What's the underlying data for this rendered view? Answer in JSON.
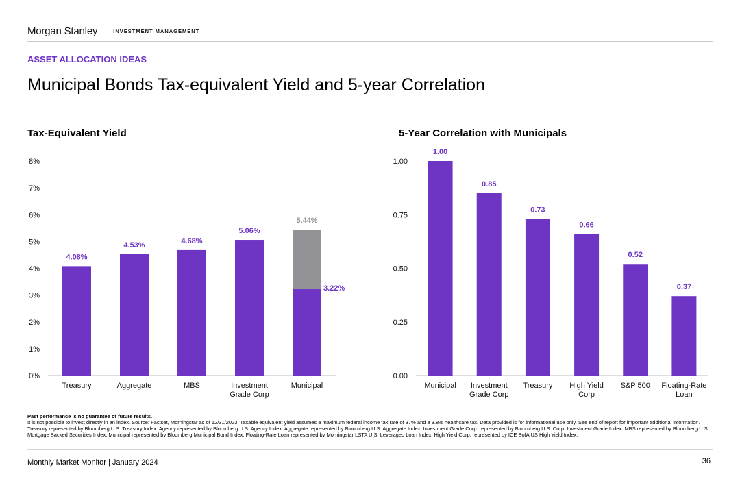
{
  "header": {
    "logo_text": "Morgan Stanley",
    "division": "INVESTMENT MANAGEMENT"
  },
  "kicker": "ASSET ALLOCATION IDEAS",
  "page_title": "Municipal Bonds Tax-equivalent Yield and 5-year Correlation",
  "colors": {
    "accent": "#6e35c5",
    "gray_bar": "#929297"
  },
  "chart_data": [
    {
      "type": "bar",
      "title": "Tax-Equivalent Yield",
      "xlabel": "",
      "ylabel": "",
      "categories": [
        "Treasury",
        "Aggregate",
        "MBS",
        "Investment Grade Corp",
        "Municipal"
      ],
      "category_lines": [
        [
          "Treasury"
        ],
        [
          "Aggregate"
        ],
        [
          "MBS"
        ],
        [
          "Investment",
          "Grade Corp"
        ],
        [
          "Municipal"
        ]
      ],
      "series": [
        {
          "values": [
            4.08,
            4.53,
            4.68,
            5.06,
            3.22
          ],
          "labels": [
            "4.08%",
            "4.53%",
            "4.68%",
            "5.06%",
            "3.22%"
          ],
          "color": "#6e35c5"
        }
      ],
      "stacked_top": {
        "category": "Municipal",
        "total": 5.44,
        "label": "5.44%",
        "color": "#929297"
      },
      "ylim": [
        0,
        8
      ],
      "yticks": [
        0,
        1,
        2,
        3,
        4,
        5,
        6,
        7,
        8
      ],
      "ytick_labels": [
        "0%",
        "1%",
        "2%",
        "3%",
        "4%",
        "5%",
        "6%",
        "7%",
        "8%"
      ],
      "grid": false,
      "legend": "none"
    },
    {
      "type": "bar",
      "title": "5-Year Correlation with Municipals",
      "xlabel": "",
      "ylabel": "",
      "categories": [
        "Municipal",
        "Investment Grade Corp",
        "Treasury",
        "High Yield Corp",
        "S&P 500",
        "Floating-Rate Loan"
      ],
      "category_lines": [
        [
          "Municipal"
        ],
        [
          "Investment",
          "Grade Corp"
        ],
        [
          "Treasury"
        ],
        [
          "High Yield",
          "Corp"
        ],
        [
          "S&P 500"
        ],
        [
          "Floating-Rate",
          "Loan"
        ]
      ],
      "series": [
        {
          "values": [
            1.0,
            0.85,
            0.73,
            0.66,
            0.52,
            0.37
          ],
          "labels": [
            "1.00",
            "0.85",
            "0.73",
            "0.66",
            "0.52",
            "0.37"
          ],
          "color": "#6e35c5"
        }
      ],
      "ylim": [
        0,
        1
      ],
      "yticks": [
        0,
        0.25,
        0.5,
        0.75,
        1
      ],
      "ytick_labels": [
        "0.00",
        "0.25",
        "0.50",
        "0.75",
        "1.00"
      ],
      "grid": false,
      "legend": "none"
    }
  ],
  "footnote": {
    "bold_line": "Past performance is no guarantee of future results.",
    "text": "It is not possible to invest directly in an index. Source: Factset, Morningstar as of 12/31/2023. Taxable equivalent yield assumes a maximum federal income tax rate of 37% and a 3.8% healthcare tax. Data provided is for informational use only. See end of report for important additional information. Treasury represented by Bloomberg U.S. Treasury Index. Agency represented by Bloomberg U.S. Agency Index. Aggregate represented by Bloomberg U.S. Aggregate Index. Investment Grade Corp. represented by Bloomberg U.S. Corp. Investment Grade Index. MBS represented by Bloomberg U.S. Mortgage Backed Securities Index. Municipal represented by Bloomberg Municipal Bond Index. Floating-Rate Loan represented by Morningstar LSTA U.S. Leveraged Loan Index. High Yield Corp. represented by ICE BofA US High Yield Index."
  },
  "footer": {
    "text": "Monthly Market Monitor | January 2024",
    "page_number": "36"
  }
}
